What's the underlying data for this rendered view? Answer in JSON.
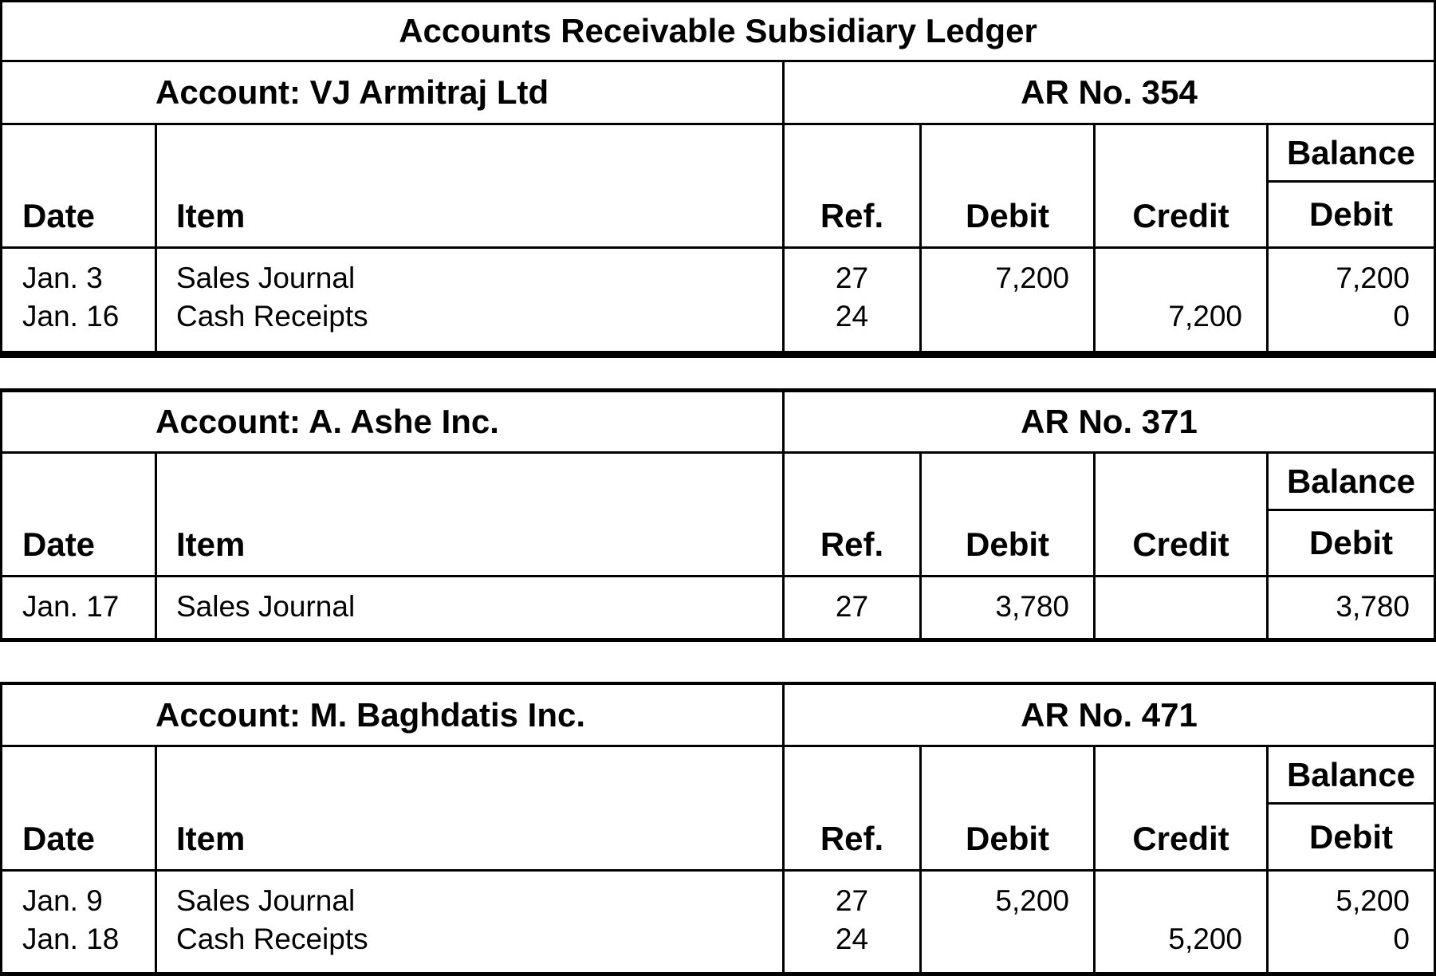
{
  "page": {
    "background": "#ffffff",
    "text_color": "#000000",
    "border_color": "#000000"
  },
  "title": "Accounts Receivable Subsidiary Ledger",
  "column_headers": {
    "date": "Date",
    "item": "Item",
    "ref": "Ref.",
    "debit": "Debit",
    "credit": "Credit",
    "balance_group": "Balance",
    "balance_sub": "Debit"
  },
  "ledgers": [
    {
      "account_label": "Account: VJ Armitraj Ltd",
      "ar_no": "AR No. 354",
      "rows": [
        {
          "date": "Jan. 3",
          "item": "Sales Journal",
          "ref": "27",
          "debit": "7,200",
          "credit": "",
          "balance": "7,200"
        },
        {
          "date": "Jan. 16",
          "item": "Cash Receipts",
          "ref": "24",
          "debit": "",
          "credit": "7,200",
          "balance": "0"
        }
      ]
    },
    {
      "account_label": "Account: A. Ashe Inc.",
      "ar_no": "AR No. 371",
      "rows": [
        {
          "date": "Jan. 17",
          "item": "Sales Journal",
          "ref": "27",
          "debit": "3,780",
          "credit": "",
          "balance": "3,780"
        }
      ]
    },
    {
      "account_label": "Account: M. Baghdatis Inc.",
      "ar_no": "AR No. 471",
      "rows": [
        {
          "date": "Jan. 9",
          "item": "Sales Journal",
          "ref": "27",
          "debit": "5,200",
          "credit": "",
          "balance": "5,200"
        },
        {
          "date": "Jan. 18",
          "item": "Cash Receipts",
          "ref": "24",
          "debit": "",
          "credit": "5,200",
          "balance": "0"
        }
      ]
    }
  ]
}
